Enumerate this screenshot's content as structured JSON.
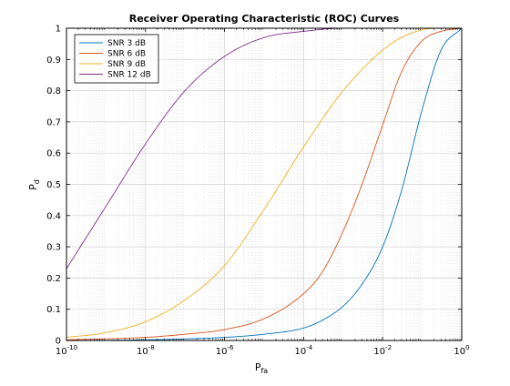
{
  "chart_data": {
    "type": "line",
    "title": "Receiver Operating Characteristic (ROC) Curves",
    "xlabel": {
      "main": "P",
      "sub": "fa"
    },
    "ylabel": {
      "main": "P",
      "sub": "d"
    },
    "xscale": "log",
    "xlim": [
      1e-10,
      1
    ],
    "ylim": [
      0,
      1
    ],
    "grid": "on",
    "minor_grid": "on",
    "legend_position": "top-left",
    "x_ticks": [
      {
        "value": 1e-10,
        "base": "10",
        "exp": "-10"
      },
      {
        "value": 1e-08,
        "base": "10",
        "exp": "-8"
      },
      {
        "value": 1e-06,
        "base": "10",
        "exp": "-6"
      },
      {
        "value": 0.0001,
        "base": "10",
        "exp": "-4"
      },
      {
        "value": 0.01,
        "base": "10",
        "exp": "-2"
      },
      {
        "value": 1,
        "base": "10",
        "exp": "0"
      }
    ],
    "y_ticks": [
      0,
      0.1,
      0.2,
      0.3,
      0.4,
      0.5,
      0.6,
      0.7,
      0.8,
      0.9,
      1
    ],
    "y_tick_labels": [
      "0",
      "0.1",
      "0.2",
      "0.3",
      "0.4",
      "0.5",
      "0.6",
      "0.7",
      "0.8",
      "0.9",
      "1"
    ],
    "series": [
      {
        "name": "SNR 3 dB",
        "color": "#0072bd",
        "x": [
          1e-10,
          1e-08,
          1e-06,
          1e-05,
          0.0001,
          0.0003,
          0.001,
          0.003,
          0.01,
          0.03,
          0.1,
          0.3,
          1
        ],
        "y": [
          0.0,
          0.002,
          0.01,
          0.02,
          0.04,
          0.065,
          0.11,
          0.18,
          0.3,
          0.48,
          0.74,
          0.93,
          1.0
        ]
      },
      {
        "name": "SNR 6 dB",
        "color": "#d95319",
        "x": [
          1e-10,
          1e-08,
          1e-07,
          1e-06,
          1e-05,
          0.0001,
          0.0003,
          0.001,
          0.003,
          0.01,
          0.03,
          0.1,
          0.3,
          1
        ],
        "y": [
          0.002,
          0.01,
          0.02,
          0.035,
          0.07,
          0.15,
          0.22,
          0.35,
          0.5,
          0.69,
          0.86,
          0.96,
          0.99,
          1.0
        ]
      },
      {
        "name": "SNR 9 dB",
        "color": "#edb120",
        "x": [
          1e-10,
          1e-09,
          1e-08,
          1e-07,
          1e-06,
          1e-05,
          0.0001,
          0.001,
          0.01,
          0.03,
          0.1,
          0.3,
          1
        ],
        "y": [
          0.01,
          0.025,
          0.06,
          0.13,
          0.24,
          0.42,
          0.62,
          0.8,
          0.93,
          0.97,
          0.995,
          1.0,
          1.0
        ]
      },
      {
        "name": "SNR 12 dB",
        "color": "#7e2f8e",
        "x": [
          1e-10,
          1e-09,
          1e-08,
          1e-07,
          1e-06,
          1e-05,
          0.0001,
          0.001,
          0.01,
          0.1,
          1
        ],
        "y": [
          0.23,
          0.43,
          0.63,
          0.8,
          0.91,
          0.97,
          0.99,
          1.0,
          1.0,
          1.0,
          1.0
        ]
      }
    ]
  }
}
